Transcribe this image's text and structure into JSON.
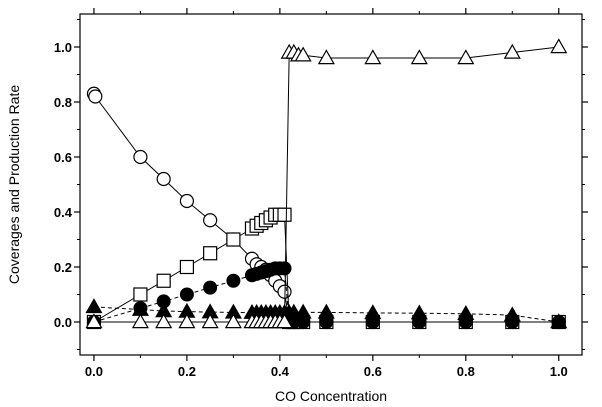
{
  "chart_data": {
    "type": "scatter",
    "title": "",
    "xlabel": "CO Concentration",
    "ylabel": "Coverages and Production Rate",
    "xlim": [
      -0.03,
      1.05
    ],
    "ylim": [
      -0.12,
      1.12
    ],
    "x_ticks": [
      0.0,
      0.2,
      0.4,
      0.6,
      0.8,
      1.0
    ],
    "x_tick_labels": [
      "0.0",
      "0.2",
      "0.4",
      "0.6",
      "0.8",
      "1.0"
    ],
    "y_ticks": [
      0.0,
      0.2,
      0.4,
      0.6,
      0.8,
      1.0
    ],
    "y_tick_labels": [
      "0.0",
      "0.2",
      "0.4",
      "0.6",
      "0.8",
      "1.0"
    ],
    "grid": false,
    "legend": "none",
    "series": [
      {
        "marker": "open-circle",
        "line": "solid",
        "x": [
          0.0,
          0.003,
          0.1,
          0.15,
          0.2,
          0.25,
          0.3,
          0.34,
          0.35,
          0.36,
          0.37,
          0.38,
          0.39,
          0.4,
          0.41,
          0.42,
          0.43,
          0.45,
          0.5,
          0.6,
          0.7,
          0.8,
          0.9,
          1.0
        ],
        "y": [
          0.83,
          0.82,
          0.6,
          0.52,
          0.44,
          0.37,
          0.3,
          0.23,
          0.21,
          0.2,
          0.19,
          0.17,
          0.15,
          0.13,
          0.11,
          0.0,
          0.0,
          0.0,
          0.0,
          0.0,
          0.0,
          0.0,
          0.0,
          0.0
        ]
      },
      {
        "marker": "open-square",
        "line": "solid",
        "x": [
          0.0,
          0.1,
          0.15,
          0.2,
          0.25,
          0.3,
          0.34,
          0.35,
          0.36,
          0.37,
          0.38,
          0.39,
          0.4,
          0.41,
          0.42,
          0.43,
          0.45,
          0.5,
          0.6,
          0.7,
          0.8,
          0.9,
          1.0
        ],
        "y": [
          0.0,
          0.1,
          0.15,
          0.2,
          0.25,
          0.3,
          0.34,
          0.35,
          0.36,
          0.37,
          0.38,
          0.39,
          0.39,
          0.39,
          0.0,
          0.0,
          0.0,
          0.0,
          0.0,
          0.0,
          0.0,
          0.0,
          0.0
        ]
      },
      {
        "marker": "filled-circle",
        "line": "dashed",
        "x": [
          0.0,
          0.1,
          0.15,
          0.2,
          0.25,
          0.3,
          0.34,
          0.35,
          0.36,
          0.37,
          0.38,
          0.39,
          0.4,
          0.41,
          0.42,
          0.43,
          0.45,
          0.5,
          0.6,
          0.7,
          0.8,
          0.9,
          1.0
        ],
        "y": [
          0.0,
          0.05,
          0.075,
          0.1,
          0.125,
          0.15,
          0.17,
          0.175,
          0.18,
          0.185,
          0.19,
          0.195,
          0.195,
          0.195,
          0.0,
          0.0,
          0.0,
          0.0,
          0.0,
          0.0,
          0.0,
          0.0,
          0.0
        ]
      },
      {
        "marker": "filled-triangle",
        "line": "dashed",
        "x": [
          0.0,
          0.1,
          0.15,
          0.2,
          0.25,
          0.3,
          0.34,
          0.35,
          0.36,
          0.37,
          0.38,
          0.39,
          0.4,
          0.41,
          0.42,
          0.43,
          0.45,
          0.5,
          0.6,
          0.7,
          0.8,
          0.9,
          1.0
        ],
        "y": [
          0.055,
          0.045,
          0.04,
          0.038,
          0.036,
          0.035,
          0.034,
          0.034,
          0.034,
          0.034,
          0.034,
          0.034,
          0.034,
          0.034,
          0.034,
          0.035,
          0.035,
          0.035,
          0.033,
          0.032,
          0.03,
          0.025,
          0.0
        ]
      },
      {
        "marker": "open-triangle",
        "line": "solid",
        "x": [
          0.0,
          0.1,
          0.15,
          0.2,
          0.25,
          0.3,
          0.34,
          0.35,
          0.36,
          0.37,
          0.38,
          0.39,
          0.4,
          0.41,
          0.42,
          0.43,
          0.44,
          0.45,
          0.5,
          0.6,
          0.7,
          0.8,
          0.9,
          1.0
        ],
        "y": [
          0.0,
          0.0,
          0.0,
          0.0,
          0.0,
          0.0,
          0.0,
          0.0,
          0.0,
          0.0,
          0.0,
          0.0,
          0.0,
          0.0,
          0.98,
          0.98,
          0.97,
          0.97,
          0.96,
          0.96,
          0.96,
          0.96,
          0.98,
          1.0
        ]
      }
    ]
  }
}
